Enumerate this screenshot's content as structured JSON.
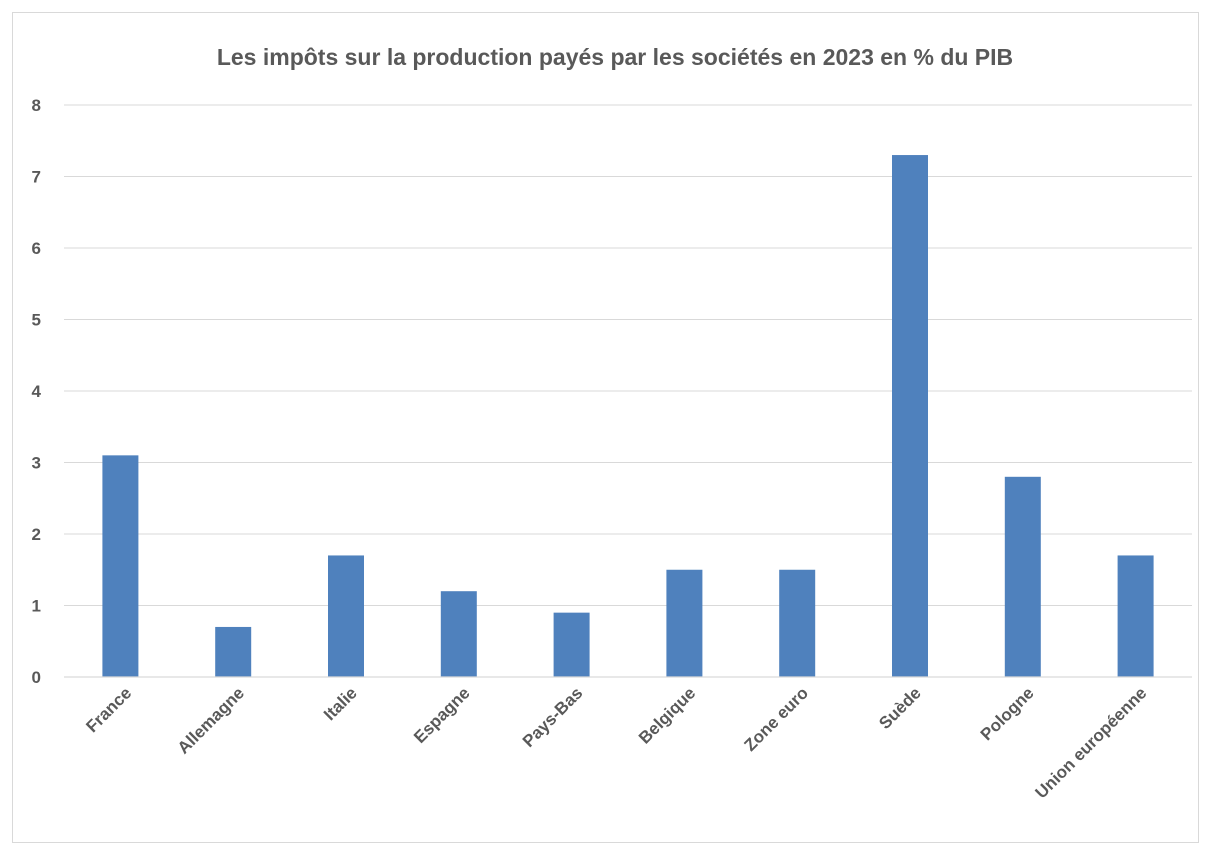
{
  "chart_data": {
    "type": "bar",
    "title": "Les impôts sur la production payés par les sociétés en 2023 en % du PIB",
    "categories": [
      "France",
      "Allemagne",
      "Italie",
      "Espagne",
      "Pays-Bas",
      "Belgique",
      "Zone euro",
      "Suède",
      "Pologne",
      "Union européenne"
    ],
    "values": [
      3.1,
      0.7,
      1.7,
      1.2,
      0.9,
      1.5,
      1.5,
      7.3,
      2.8,
      1.7
    ],
    "ylim": [
      0,
      8
    ],
    "yticks": [
      "0",
      "1",
      "2",
      "3",
      "4",
      "5",
      "6",
      "7",
      "8"
    ],
    "xlabel": "",
    "ylabel": "",
    "grid": true,
    "legend": "none",
    "colors": {
      "bar": "#4f81bd",
      "grid": "#d9d9d9",
      "text": "#595959",
      "border": "#d9d9d9"
    }
  }
}
